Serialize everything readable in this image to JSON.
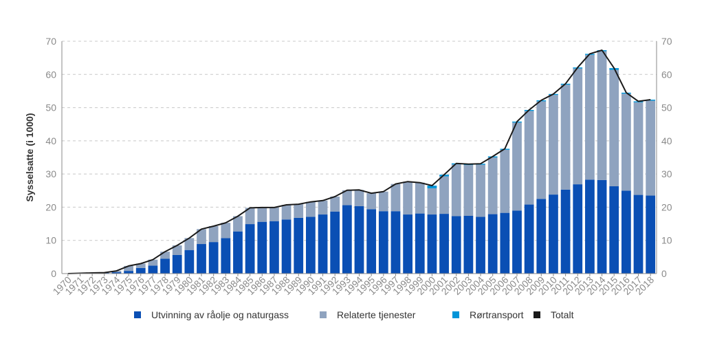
{
  "chart_data": {
    "type": "bar",
    "stacked": true,
    "ylabel": "Sysselsatte (i 1000)",
    "ylim": [
      0,
      70
    ],
    "yticks": [
      0,
      10,
      20,
      30,
      40,
      50,
      60,
      70
    ],
    "grid": true,
    "legend_position": "bottom",
    "categories": [
      "1970",
      "1971",
      "1972",
      "1973",
      "1974",
      "1975",
      "1976",
      "1977",
      "1978",
      "1979",
      "1980",
      "1981",
      "1982",
      "1983",
      "1984",
      "1985",
      "1986",
      "1987",
      "1988",
      "1989",
      "1990",
      "1991",
      "1992",
      "1993",
      "1994",
      "1995",
      "1996",
      "1997",
      "1998",
      "1999",
      "2000",
      "2001",
      "2002",
      "2003",
      "2004",
      "2005",
      "2006",
      "2007",
      "2008",
      "2009",
      "2010",
      "2011",
      "2012",
      "2013",
      "2014",
      "2015",
      "2016",
      "2017",
      "2018"
    ],
    "series": [
      {
        "name": "Utvinning av råolje og naturgass",
        "color": "#0a4fb4",
        "type": "bar",
        "values": [
          0,
          0,
          0.1,
          0.2,
          0.4,
          0.8,
          1.7,
          2.4,
          4.5,
          5.6,
          7.1,
          8.9,
          9.5,
          10.7,
          12.7,
          14.9,
          15.6,
          15.8,
          16.3,
          16.8,
          17.1,
          17.8,
          18.7,
          20.6,
          20.3,
          19.4,
          18.8,
          18.8,
          17.8,
          18.1,
          17.8,
          18.0,
          17.3,
          17.4,
          17.1,
          17.9,
          18.3,
          19.0,
          20.8,
          22.5,
          23.8,
          25.3,
          26.9,
          28.3,
          28.2,
          26.3,
          25.0,
          23.7,
          23.5
        ]
      },
      {
        "name": "Relaterte tjenester",
        "color": "#8fa3bf",
        "type": "bar",
        "values": [
          0,
          0.1,
          0.1,
          0.1,
          0.4,
          1.5,
          1.3,
          1.8,
          2.1,
          2.9,
          3.6,
          4.5,
          4.8,
          4.6,
          4.6,
          4.9,
          4.3,
          4.1,
          4.4,
          4.1,
          4.5,
          4.2,
          4.5,
          4.5,
          4.9,
          4.8,
          5.9,
          8.2,
          9.9,
          9.3,
          7.9,
          11.3,
          15.6,
          15.3,
          15.7,
          17.1,
          19.0,
          26.5,
          28.2,
          29.4,
          30.0,
          31.6,
          34.9,
          37.6,
          38.8,
          35.1,
          29.2,
          27.9,
          28.6
        ]
      },
      {
        "name": "Rørtransport",
        "color": "#0095d9",
        "type": "bar",
        "values": [
          0,
          0,
          0,
          0,
          0,
          0,
          0,
          0,
          0,
          0,
          0,
          0,
          0,
          0,
          0,
          0,
          0,
          0,
          0,
          0,
          0,
          0,
          0,
          0,
          0,
          0,
          0,
          0,
          0,
          0,
          0.8,
          0.5,
          0.3,
          0.3,
          0.3,
          0.3,
          0.3,
          0.3,
          0.3,
          0.3,
          0.3,
          0.3,
          0.3,
          0.3,
          0.3,
          0.5,
          0.3,
          0.3,
          0.3
        ]
      },
      {
        "name": "Totalt",
        "color": "#1a1a1a",
        "type": "line",
        "values": [
          0,
          0.1,
          0.2,
          0.3,
          0.8,
          2.3,
          3.0,
          4.2,
          6.6,
          8.5,
          10.7,
          13.4,
          14.3,
          15.3,
          17.3,
          19.8,
          19.9,
          19.9,
          20.7,
          20.9,
          21.6,
          22.0,
          23.2,
          25.1,
          25.2,
          24.2,
          24.7,
          27.0,
          27.7,
          27.4,
          26.5,
          29.8,
          33.2,
          33.0,
          33.1,
          35.3,
          37.6,
          45.8,
          49.3,
          52.2,
          54.1,
          57.2,
          62.1,
          66.2,
          67.3,
          61.9,
          54.5,
          51.9,
          52.4
        ]
      }
    ]
  }
}
